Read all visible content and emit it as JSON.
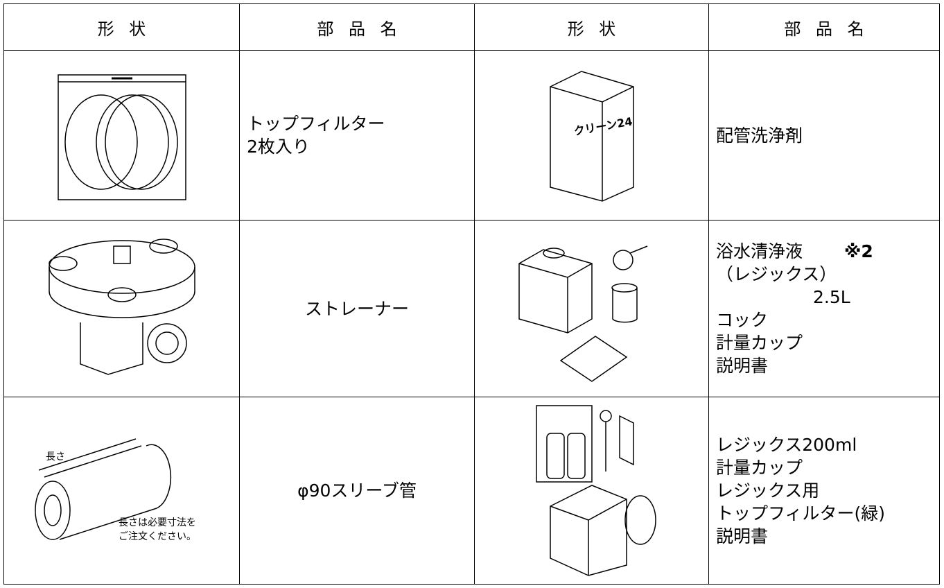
{
  "table": {
    "header": [
      "形状",
      "部品名",
      "形状",
      "部品名"
    ],
    "rows": [
      {
        "left_name": [
          "トップフィルター",
          "2枚入り"
        ],
        "right_image_labels": [
          "クリーン24"
        ],
        "right_name": [
          "配管洗浄剤"
        ]
      },
      {
        "left_name": [
          "ストレーナー"
        ],
        "right_name": [
          "浴水清浄液",
          "※2",
          "（レジックス）",
          "2.5L",
          "コック",
          "計量カップ",
          "説明書"
        ]
      },
      {
        "left_image_labels": [
          "長さ",
          "長さは必要寸法を",
          "ご注文ください。"
        ],
        "left_name": [
          "φ90スリーブ管"
        ],
        "right_name": [
          "レジックス200ml",
          "計量カップ",
          "レジックス用",
          "トップフィルター(緑)",
          "説明書"
        ]
      }
    ]
  }
}
